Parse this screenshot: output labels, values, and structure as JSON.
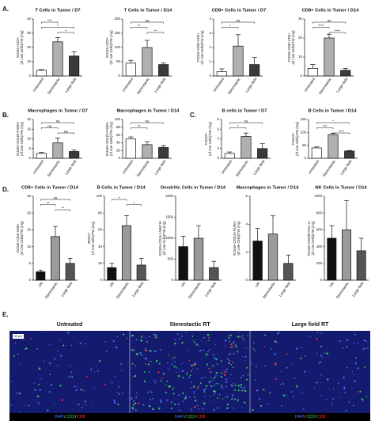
{
  "panel_labels": [
    "A.",
    "B.",
    "C.",
    "D.",
    "E."
  ],
  "chart_data": [
    {
      "type": "bar",
      "title": "T Cells in Tumor / D7",
      "ylabel": [
        "#CD45+CD3+",
        "(of Live Cells)/TW (mg)"
      ],
      "categories": [
        "Untreated",
        "Stereotactic",
        "Large field"
      ],
      "values": [
        4,
        24,
        14
      ],
      "errors": [
        0.5,
        3,
        3
      ],
      "colors": [
        "#ffffff",
        "#b0b0b0",
        "#3a3a3a"
      ],
      "ylim": [
        0,
        40
      ],
      "yticks": [
        0,
        10,
        20,
        30,
        40
      ],
      "annotations": [
        {
          "label": "***",
          "groups": [
            "Untreated",
            "Stereotactic"
          ]
        },
        {
          "label": "*",
          "groups": [
            "Untreated",
            "Large field"
          ]
        },
        {
          "label": "*",
          "groups": [
            "Stereotactic",
            "Large field"
          ]
        }
      ]
    },
    {
      "type": "bar",
      "title": "T Cells in Tumor / D14",
      "ylabel": [
        "#CD45+CD3+",
        "(of Live Cells)/TW (mg)"
      ],
      "categories": [
        "Untreated",
        "Stereotactic",
        "Large field"
      ],
      "values": [
        45,
        100,
        40
      ],
      "errors": [
        10,
        25,
        6
      ],
      "colors": [
        "#ffffff",
        "#b0b0b0",
        "#3a3a3a"
      ],
      "ylim": [
        0,
        200
      ],
      "yticks": [
        0,
        50,
        100,
        150,
        200
      ],
      "annotations": [
        {
          "label": "ns",
          "groups": [
            "Untreated",
            "Large field"
          ]
        },
        {
          "label": "**",
          "groups": [
            "Untreated",
            "Stereotactic"
          ]
        },
        {
          "label": "**",
          "groups": [
            "Stereotactic",
            "Large field"
          ]
        }
      ]
    },
    {
      "type": "bar",
      "title": "CD8+ Cells in Tumor / D7",
      "ylabel": [
        "#CD45+CD8+CD3+",
        "(of Live Cells)/TW (mg)"
      ],
      "categories": [
        "Untreated",
        "Stereotactic",
        "Large field"
      ],
      "values": [
        0.3,
        2.1,
        0.8
      ],
      "errors": [
        0.2,
        0.8,
        0.5
      ],
      "colors": [
        "#ffffff",
        "#b0b0b0",
        "#3a3a3a"
      ],
      "ylim": [
        0,
        4
      ],
      "yticks": [
        0,
        1,
        2,
        3,
        4
      ],
      "annotations": [
        {
          "label": "ns",
          "groups": [
            "Untreated",
            "Large field"
          ]
        },
        {
          "label": "*",
          "groups": [
            "Untreated",
            "Stereotactic"
          ]
        }
      ]
    },
    {
      "type": "bar",
      "title": "CD8+ Cells in Tumor / D14",
      "ylabel": [
        "#CD45+CD8+CD3+",
        "(of Live Cells)/TW (mg)"
      ],
      "categories": [
        "Untreated",
        "Stereotactic",
        "Large field"
      ],
      "values": [
        4,
        20,
        3
      ],
      "errors": [
        2,
        2,
        1
      ],
      "colors": [
        "#ffffff",
        "#b0b0b0",
        "#3a3a3a"
      ],
      "ylim": [
        0,
        30
      ],
      "yticks": [
        0,
        10,
        20,
        30
      ],
      "annotations": [
        {
          "label": "ns",
          "groups": [
            "Untreated",
            "Large field"
          ]
        },
        {
          "label": "****",
          "groups": [
            "Untreated",
            "Stereotactic"
          ]
        },
        {
          "label": "****",
          "groups": [
            "Stereotactic",
            "Large field"
          ]
        }
      ]
    },
    {
      "type": "bar",
      "title": "Macrophages in Tumor / D7",
      "ylabel": [
        "#CD45+CD11b+F4/80+",
        "(of Live Cells)/TW (mg)"
      ],
      "categories": [
        "Untreated",
        "Stereotactic",
        "Large field"
      ],
      "values": [
        2.5,
        8,
        3.5
      ],
      "errors": [
        0.5,
        2.5,
        0.8
      ],
      "colors": [
        "#ffffff",
        "#b0b0b0",
        "#3a3a3a"
      ],
      "ylim": [
        0,
        20
      ],
      "yticks": [
        0,
        5,
        10,
        15,
        20
      ],
      "annotations": [
        {
          "label": "ns",
          "groups": [
            "Untreated",
            "Large field"
          ]
        },
        {
          "label": "ns",
          "groups": [
            "Untreated",
            "Stereotactic"
          ]
        },
        {
          "label": "ns",
          "groups": [
            "Stereotactic",
            "Large field"
          ]
        }
      ]
    },
    {
      "type": "bar",
      "title": "Macrophages in Tumor / D14",
      "ylabel": [
        "#CD45+CD11b+F4/80+",
        "(of Live Cells)/TW (mg)"
      ],
      "categories": [
        "Untreated",
        "Stereotactic",
        "Large field"
      ],
      "values": [
        50,
        35,
        28
      ],
      "errors": [
        5,
        8,
        5
      ],
      "colors": [
        "#ffffff",
        "#b0b0b0",
        "#3a3a3a"
      ],
      "ylim": [
        0,
        100
      ],
      "yticks": [
        0,
        20,
        40,
        60,
        80,
        100
      ],
      "annotations": [
        {
          "label": "ns",
          "groups": [
            "Untreated",
            "Large field"
          ]
        },
        {
          "label": "**",
          "groups": [
            "Untreated",
            "Stereotactic"
          ]
        }
      ]
    },
    {
      "type": "bar",
      "title": "B cells in Tumor / D7",
      "ylabel": [
        "# B220+",
        "(of Live Cells)/TW (mg)"
      ],
      "categories": [
        "Untreated",
        "Stereotactic",
        "Large field"
      ],
      "values": [
        1,
        4.5,
        2
      ],
      "errors": [
        0.3,
        0.7,
        1
      ],
      "colors": [
        "#ffffff",
        "#b0b0b0",
        "#3a3a3a"
      ],
      "ylim": [
        0,
        8
      ],
      "yticks": [
        0,
        2,
        4,
        6,
        8
      ],
      "annotations": [
        {
          "label": "ns",
          "groups": [
            "Untreated",
            "Large field"
          ]
        },
        {
          "label": "*",
          "groups": [
            "Untreated",
            "Stereotactic"
          ]
        }
      ]
    },
    {
      "type": "bar",
      "title": "B Cells in Tumor / D14",
      "ylabel": [
        "# B220+",
        "(of Live Cells)/TW (mg)"
      ],
      "categories": [
        "Untreated",
        "Stereotactic",
        "Large field"
      ],
      "values": [
        40,
        92,
        28
      ],
      "errors": [
        5,
        5,
        2
      ],
      "colors": [
        "#ffffff",
        "#b0b0b0",
        "#3a3a3a"
      ],
      "ylim": [
        0,
        150
      ],
      "yticks": [
        0,
        50,
        100,
        150
      ],
      "annotations": [
        {
          "label": "*",
          "groups": [
            "Untreated",
            "Large field"
          ]
        },
        {
          "label": "***",
          "groups": [
            "Untreated",
            "Stereotactic"
          ]
        },
        {
          "label": "****",
          "groups": [
            "Stereotactic",
            "Large field"
          ]
        }
      ]
    },
    {
      "type": "bar",
      "title": "CD8+ Cells in Tumor / D14",
      "ylabel": [
        "#CD45+CD3+CD8+",
        "(of Live Cells)/TW (mg)"
      ],
      "categories": [
        "UN",
        "Stereotactic",
        "Large field"
      ],
      "values": [
        2.5,
        13,
        5
      ],
      "errors": [
        0.5,
        3,
        1.5
      ],
      "colors": [
        "#111111",
        "#9a9a9a",
        "#555555"
      ],
      "ylim": [
        0,
        25
      ],
      "yticks": [
        0,
        5,
        10,
        15,
        20,
        25
      ],
      "annotations": [
        {
          "label": "ns",
          "groups": [
            "UN",
            "Large field"
          ]
        },
        {
          "label": "**",
          "groups": [
            "UN",
            "Stereotactic"
          ]
        },
        {
          "label": "**",
          "groups": [
            "Stereotactic",
            "Large field"
          ]
        }
      ]
    },
    {
      "type": "bar",
      "title": "B Cells in Tumor / D14",
      "ylabel": [
        "#B220+",
        "(of Live cells)/TW (mg)"
      ],
      "categories": [
        "UN",
        "Stereotactic",
        "Large field"
      ],
      "values": [
        15,
        65,
        18
      ],
      "errors": [
        5,
        12,
        8
      ],
      "colors": [
        "#111111",
        "#9a9a9a",
        "#555555"
      ],
      "ylim": [
        0,
        100
      ],
      "yticks": [
        0,
        20,
        40,
        60,
        80,
        100
      ],
      "annotations": [
        {
          "label": "*",
          "groups": [
            "UN",
            "Stereotactic"
          ]
        },
        {
          "label": "*",
          "groups": [
            "Stereotactic",
            "Large field"
          ]
        }
      ]
    },
    {
      "type": "bar",
      "title": "Dendritic Cells in Tumor / D14",
      "ylabel": [
        "#CD45+CD11c+MHCII+",
        "(of Live Cells)/TW (mg)"
      ],
      "categories": [
        "UN",
        "Stereotactic",
        "Large field"
      ],
      "values": [
        800,
        1000,
        300
      ],
      "errors": [
        250,
        300,
        150
      ],
      "colors": [
        "#111111",
        "#9a9a9a",
        "#555555"
      ],
      "ylim": [
        0,
        2000
      ],
      "yticks": [
        0,
        500,
        1000,
        1500,
        2000
      ],
      "annotations": []
    },
    {
      "type": "bar",
      "title": "Macrophages in Tumor / D14",
      "ylabel": [
        "#CD45+CD11b+F4/80+",
        "(of Live Cells)/TW (mg)"
      ],
      "categories": [
        "UN",
        "Stereotactic",
        "Large field"
      ],
      "values": [
        2.8,
        3.3,
        1.2
      ],
      "errors": [
        0.9,
        1.3,
        0.6
      ],
      "colors": [
        "#111111",
        "#9a9a9a",
        "#555555"
      ],
      "ylim": [
        0,
        6
      ],
      "yticks": [
        0,
        2,
        4,
        6
      ],
      "annotations": []
    },
    {
      "type": "bar",
      "title": "NK Cells in Tumor / D14",
      "ylabel": [
        "#CD45+CD49b+NK1.1+",
        "(of Live Cells)/TW (mg)"
      ],
      "categories": [
        "UN",
        "Stereotactic",
        "Large field"
      ],
      "values": [
        500,
        600,
        350
      ],
      "errors": [
        150,
        350,
        150
      ],
      "colors": [
        "#111111",
        "#9a9a9a",
        "#555555"
      ],
      "ylim": [
        0,
        1000
      ],
      "yticks": [
        0,
        200,
        400,
        600,
        800,
        1000
      ],
      "annotations": []
    }
  ],
  "images": {
    "titles": [
      "Untreated",
      "Stereotactic RT",
      "Large field RT"
    ],
    "scale_bar": "50 µm",
    "stains": [
      {
        "text": "DAPI",
        "color": "#4a78ff"
      },
      {
        "text": "CD3",
        "color": "#33dd55"
      },
      {
        "text": "CD8",
        "color": "#ff3333"
      }
    ],
    "separator": "/"
  }
}
